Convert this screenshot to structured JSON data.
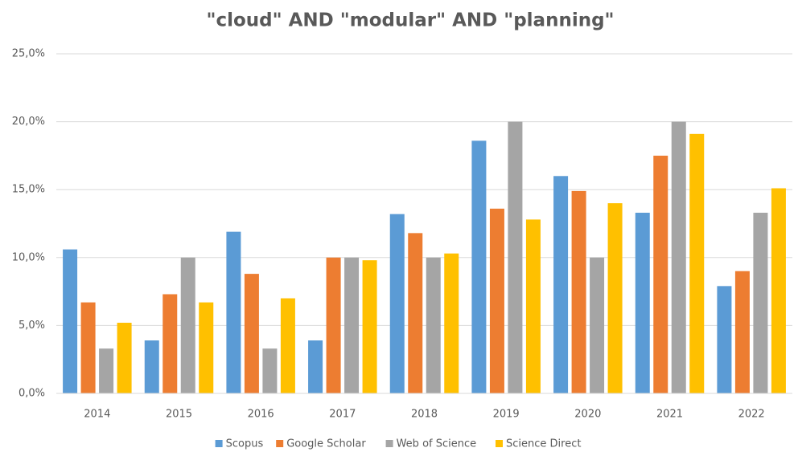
{
  "chart_data": {
    "type": "bar",
    "title": "\"cloud\" AND \"modular\" AND \"planning\"",
    "categories": [
      "2014",
      "2015",
      "2016",
      "2017",
      "2018",
      "2019",
      "2020",
      "2021",
      "2022"
    ],
    "series": [
      {
        "name": "Scopus",
        "color": "#5b9bd5",
        "values": [
          10.6,
          3.9,
          11.9,
          3.9,
          13.2,
          18.6,
          16.0,
          13.3,
          7.9
        ]
      },
      {
        "name": "Google Scholar",
        "color": "#ed7d31",
        "values": [
          6.7,
          7.3,
          8.8,
          10.0,
          11.8,
          13.6,
          14.9,
          17.5,
          9.0
        ]
      },
      {
        "name": "Web of Science",
        "color": "#a5a5a5",
        "values": [
          3.3,
          10.0,
          3.3,
          10.0,
          10.0,
          20.0,
          10.0,
          20.0,
          13.3
        ]
      },
      {
        "name": "Science Direct",
        "color": "#ffc000",
        "values": [
          5.2,
          6.7,
          7.0,
          9.8,
          10.3,
          12.8,
          14.0,
          19.1,
          15.1
        ]
      }
    ],
    "ylim": [
      0,
      25
    ],
    "yticks": [
      {
        "value": 0,
        "label": "0,0%"
      },
      {
        "value": 5,
        "label": "5,0%"
      },
      {
        "value": 10,
        "label": "10,0%"
      },
      {
        "value": 15,
        "label": "15,0%"
      },
      {
        "value": 20,
        "label": "20,0%"
      },
      {
        "value": 25,
        "label": "25,0%"
      }
    ],
    "grid": true,
    "legend": "bottom"
  }
}
